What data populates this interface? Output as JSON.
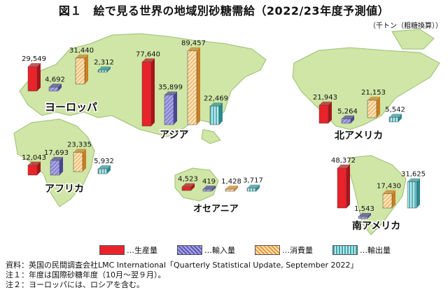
{
  "title": "図１　絵で見る世界の地域別砂糖需給（2022/23年度予測値）",
  "unit": "（千トン（粗糖換算））",
  "legend": [
    {
      "label": "…生産量",
      "color": "#e8232a",
      "pattern": "solid"
    },
    {
      "label": "…輸入量",
      "color": "#8a86d6",
      "pattern": "stripe"
    },
    {
      "label": "…消費量",
      "color": "#f2b15a",
      "pattern": "stripe"
    },
    {
      "label": "…輸出量",
      "color": "#5fbfc4",
      "pattern": "vstripe"
    }
  ],
  "notes": [
    "資料：英国の民間調査会社LMC International「Quarterly Statistical Update, September 2022」",
    "注１：年度は国際砂糖年度（10月～翌９月）。",
    "注２：ヨーロッパには、ロシアを含む。"
  ],
  "chart_data": {
    "type": "bar",
    "title": "絵で見る世界の地域別砂糖需給（2022/23年度予測値）",
    "unit": "千トン（粗糖換算）",
    "series": [
      "生産量",
      "輸入量",
      "消費量",
      "輸出量"
    ],
    "regions": [
      {
        "name": "ヨーロッパ",
        "values": [
          29549,
          4692,
          31440,
          2312
        ],
        "labels": [
          "29,549",
          "4,692",
          "31,440",
          "2,312"
        ]
      },
      {
        "name": "アジア",
        "values": [
          77640,
          35899,
          89457,
          22469
        ],
        "labels": [
          "77,640",
          "35,899",
          "89,457",
          "22,469"
        ]
      },
      {
        "name": "北アメリカ",
        "values": [
          21943,
          5264,
          21153,
          5542
        ],
        "labels": [
          "21,943",
          "5,264",
          "21,153",
          "5,542"
        ]
      },
      {
        "name": "アフリカ",
        "values": [
          12043,
          17693,
          23335,
          5932
        ],
        "labels": [
          "12,043",
          "17,693",
          "23,335",
          "5,932"
        ]
      },
      {
        "name": "オセアニア",
        "values": [
          4523,
          419,
          1428,
          3717
        ],
        "labels": [
          "4,523",
          "419",
          "1,428",
          "3,717"
        ]
      },
      {
        "name": "南アメリカ",
        "values": [
          48372,
          1543,
          17430,
          31625
        ],
        "labels": [
          "48,372",
          "1,543",
          "17,430",
          "31,625"
        ]
      }
    ]
  }
}
